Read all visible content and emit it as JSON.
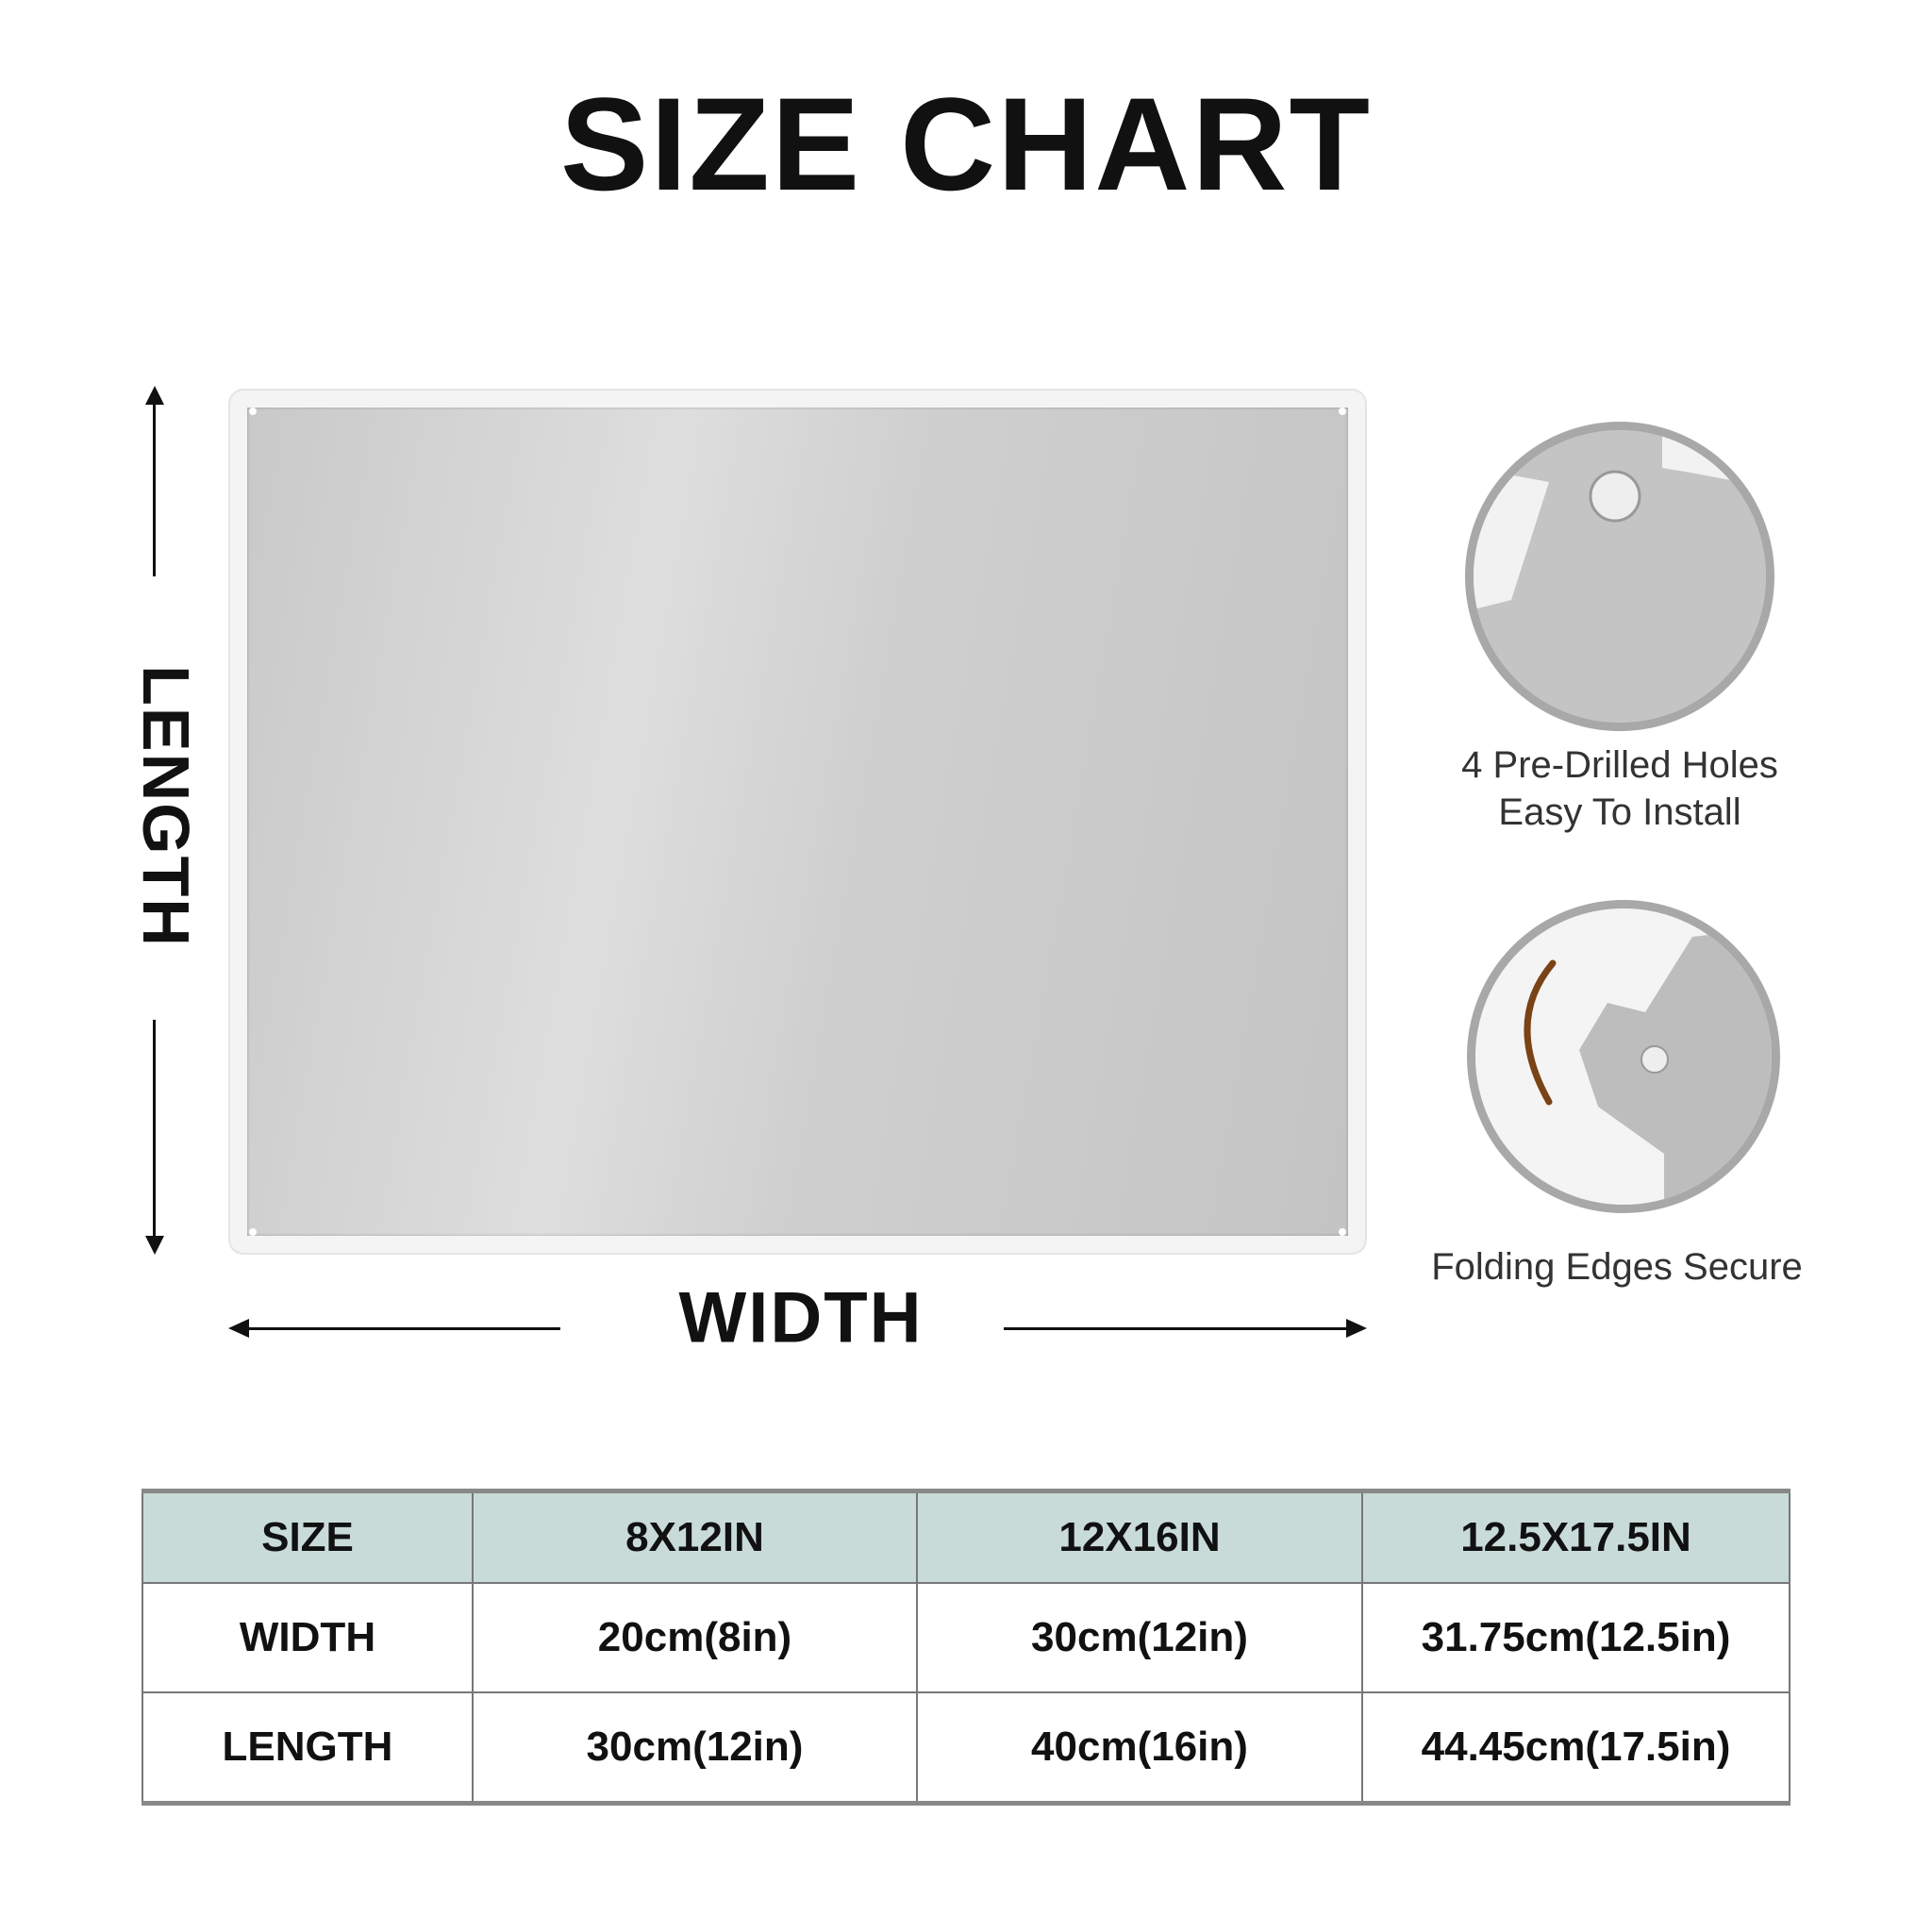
{
  "title": "SIZE CHART",
  "dimension_labels": {
    "length": "LENGTH",
    "width": "WIDTH"
  },
  "features": [
    {
      "caption_lines": [
        "4 Pre-Drilled Holes",
        "Easy To Install"
      ]
    },
    {
      "caption_lines": [
        "Folding Edges Secure"
      ]
    }
  ],
  "table": {
    "header": [
      "SIZE",
      "8X12IN",
      "12X16IN",
      "12.5X17.5IN"
    ],
    "rows": [
      [
        "WIDTH",
        "20cm(8in)",
        "30cm(12in)",
        "31.75cm(12.5in)"
      ],
      [
        "LENGTH",
        "30cm(12in)",
        "40cm(16in)",
        "44.45cm(17.5in)"
      ]
    ]
  },
  "colors": {
    "header_bg": "#c8dbd8",
    "ring": "#a8a8a8",
    "edge_accent": "#7a4316"
  }
}
